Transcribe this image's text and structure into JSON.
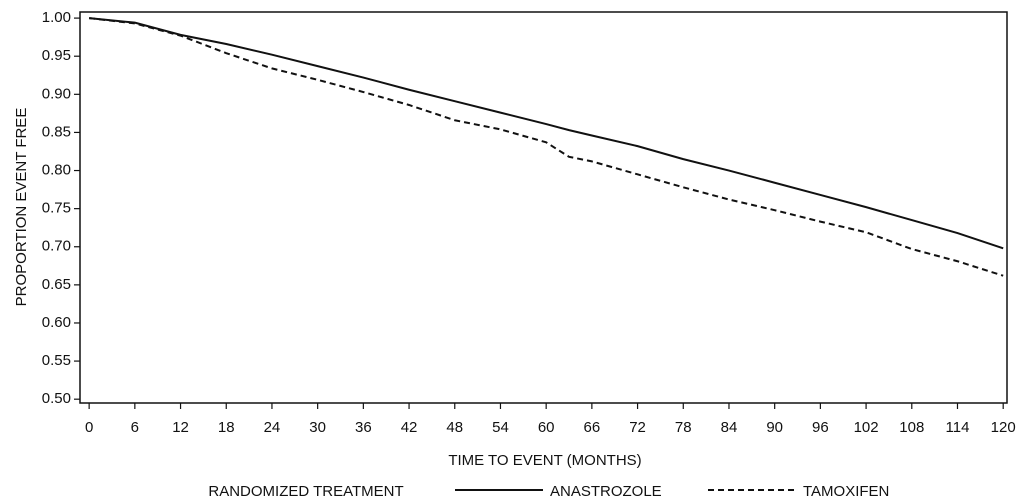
{
  "chart_data": {
    "type": "line",
    "ylabel": "PROPORTION EVENT FREE",
    "xlabel": "TIME TO EVENT (MONTHS)",
    "legend_title": "RANDOMIZED TREATMENT",
    "legend_position": "bottom",
    "x": [
      0,
      6,
      12,
      18,
      24,
      30,
      36,
      42,
      48,
      54,
      60,
      63,
      66,
      72,
      78,
      84,
      90,
      96,
      102,
      108,
      114,
      120
    ],
    "series": [
      {
        "name": "ANASTROZOLE",
        "color": "#111111",
        "dash": "solid",
        "values": [
          1.0,
          0.994,
          0.978,
          0.966,
          0.952,
          0.937,
          0.922,
          0.906,
          0.891,
          0.876,
          0.861,
          0.853,
          0.846,
          0.832,
          0.815,
          0.8,
          0.784,
          0.768,
          0.752,
          0.735,
          0.718,
          0.698
        ]
      },
      {
        "name": "TAMOXIFEN",
        "color": "#111111",
        "dash": "dashed",
        "values": [
          1.0,
          0.993,
          0.977,
          0.954,
          0.934,
          0.919,
          0.903,
          0.886,
          0.866,
          0.854,
          0.837,
          0.818,
          0.812,
          0.795,
          0.778,
          0.762,
          0.748,
          0.733,
          0.719,
          0.697,
          0.681,
          0.662
        ]
      }
    ],
    "xlim": [
      -1.2,
      120.5
    ],
    "ylim": [
      0.495,
      1.008
    ],
    "xticks": [
      0,
      6,
      12,
      18,
      24,
      30,
      36,
      42,
      48,
      54,
      60,
      66,
      72,
      78,
      84,
      90,
      96,
      102,
      108,
      114,
      120
    ],
    "yticks": [
      {
        "value": 0.5,
        "label": "0.50"
      },
      0.55,
      {
        "value": 0.6,
        "label": "0.60"
      },
      0.65,
      {
        "value": 0.7,
        "label": "0.70"
      },
      0.75,
      {
        "value": 0.8,
        "label": "0.80"
      },
      0.85,
      {
        "value": 0.9,
        "label": "0.90"
      },
      0.95,
      {
        "value": 1,
        "label": "1.00"
      }
    ],
    "grid": false
  }
}
